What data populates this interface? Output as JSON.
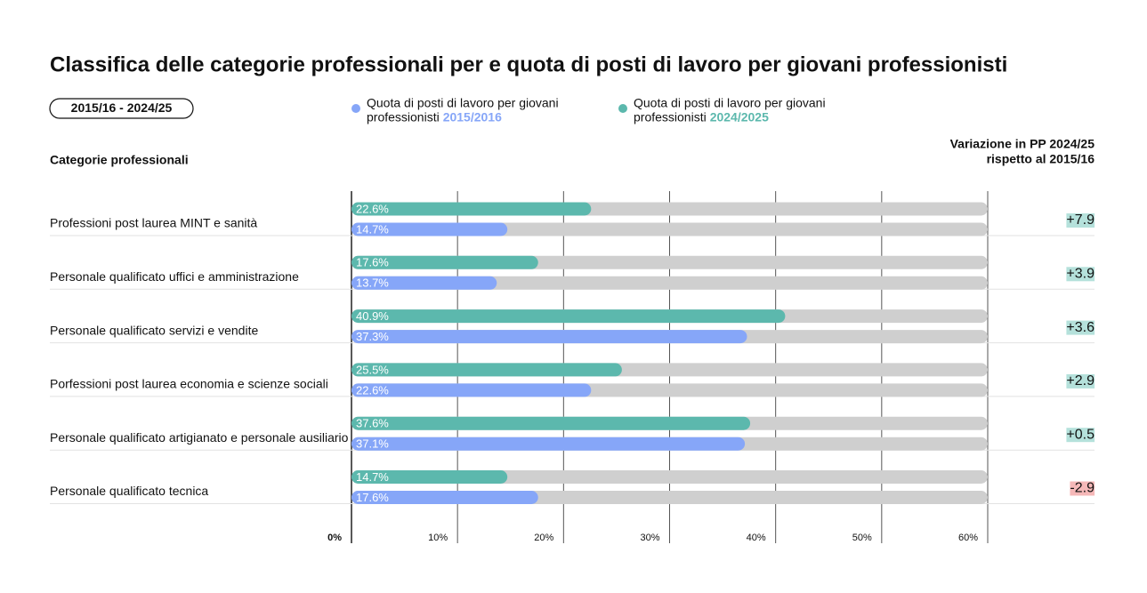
{
  "chart_data": {
    "type": "paired_bar",
    "title": "Classifica delle categorie professionali per e quota di posti di lavoro per giovani professionisti",
    "period_badge": "2015/16 - 2024/25",
    "category_header": "Categorie professionali",
    "legend_text": "Quota di posti di lavoro per giovani professionisti",
    "categories": [
      "Professioni post laurea MINT e sanità",
      "Personale qualificato uffici e amministrazione",
      "Personale qualificato servizi e vendite",
      "Porfessioni post laurea economia e scienze sociali",
      "Personale qualificato artigianato e personale ausiliario",
      "Personale qualificato tecnica"
    ],
    "series": [
      {
        "name": "2024/2025",
        "color": "#5cb8ad",
        "values": [
          22.6,
          17.6,
          40.9,
          25.5,
          37.6,
          14.7
        ],
        "value_labels": [
          "22.6%",
          "17.6%",
          "40.9%",
          "25.5%",
          "37.6%",
          "14.7%"
        ]
      },
      {
        "name": "2015/2016",
        "color": "#86a6f8",
        "values": [
          14.7,
          13.7,
          37.3,
          22.6,
          37.1,
          17.6
        ],
        "value_labels": [
          "14.7%",
          "13.7%",
          "37.3%",
          "22.6%",
          "37.1%",
          "17.6%"
        ]
      }
    ],
    "legend_order": [
      1,
      0
    ],
    "track_color": "#cfcfcf",
    "xlim": [
      0,
      60
    ],
    "xticks": [
      {
        "value": 0,
        "label": "0%"
      },
      {
        "value": 10,
        "label": "10%"
      },
      {
        "value": 20,
        "label": "20%"
      },
      {
        "value": 30,
        "label": "30%"
      },
      {
        "value": 40,
        "label": "40%"
      },
      {
        "value": 50,
        "label": "50%"
      },
      {
        "value": 60,
        "label": "60%"
      }
    ],
    "change": {
      "title_lines": [
        "Variazione in PP 2024/25",
        "rispetto al 2015/16"
      ],
      "values": [
        7.9,
        3.9,
        3.6,
        2.9,
        0.5,
        -2.9
      ],
      "value_labels": [
        "+7.9",
        "+3.9",
        "+3.6",
        "+2.9",
        "+0.5",
        "-2.9"
      ],
      "positive_color": "#b5e1db",
      "negative_color": "#f5b8b8"
    }
  }
}
